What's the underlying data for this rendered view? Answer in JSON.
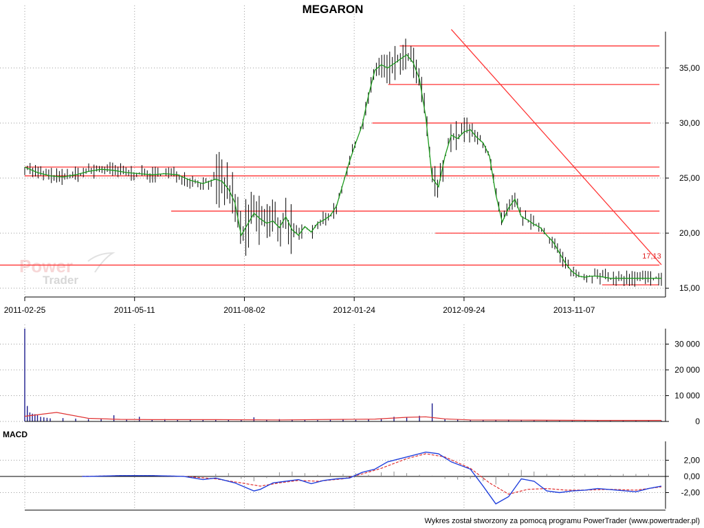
{
  "title": "MEGARON",
  "credit": "Wykres został stworzony za pomocą programu PowerTrader (www.powertrader.pl)",
  "watermark": {
    "line1": "Power",
    "line2": "Trader"
  },
  "colors": {
    "price_bars": "#000000",
    "moving_average": "#1a9a1a",
    "levels": "#ff3333",
    "volume": "#1a1a8c",
    "volume_avg": "#e03030",
    "macd": "#1f3fdc",
    "signal": "#e03030",
    "histogram": "#8a8a8a"
  },
  "chart_data": [
    {
      "type": "line",
      "panel": "price",
      "title": "MEGARON",
      "x_tick_labels": [
        "2011-02-25",
        "2011-05-11",
        "2011-08-02",
        "2012-01-24",
        "2012-09-24",
        "2013-11-07"
      ],
      "y_ticks": [
        15,
        20,
        25,
        30,
        35
      ],
      "y_tick_labels": [
        "15,00",
        "20,00",
        "25,00",
        "30,00",
        "35,00"
      ],
      "ylim": [
        14.2,
        38.8
      ],
      "grid": true,
      "annotation": "17,13",
      "series": [
        {
          "style": "moving-average",
          "x": [
            0,
            0.02,
            0.04,
            0.06,
            0.08,
            0.1,
            0.12,
            0.14,
            0.16,
            0.18,
            0.2,
            0.22,
            0.24,
            0.26,
            0.28,
            0.3,
            0.31,
            0.32,
            0.33,
            0.34,
            0.35,
            0.36,
            0.37,
            0.38,
            0.39,
            0.4,
            0.41,
            0.42,
            0.43,
            0.44,
            0.45,
            0.46,
            0.47,
            0.48,
            0.49,
            0.5,
            0.51,
            0.52,
            0.53,
            0.54,
            0.55,
            0.56,
            0.57,
            0.58,
            0.59,
            0.6,
            0.61,
            0.62,
            0.63,
            0.64,
            0.65,
            0.66,
            0.67,
            0.68,
            0.69,
            0.7,
            0.71,
            0.72,
            0.73,
            0.74,
            0.75,
            0.76,
            0.77,
            0.78,
            0.79,
            0.8,
            0.81,
            0.82,
            0.83,
            0.84,
            0.85,
            0.86,
            0.87,
            0.88,
            0.89,
            0.9,
            0.91,
            0.92,
            0.93,
            0.94,
            0.95,
            0.96,
            0.97,
            0.98,
            0.99,
            1.0
          ],
          "values": [
            26.0,
            25.5,
            25.2,
            25.1,
            25.3,
            25.6,
            25.8,
            25.7,
            25.5,
            25.4,
            25.3,
            25.4,
            25.3,
            24.8,
            24.5,
            24.9,
            24.7,
            24.0,
            22.8,
            19.8,
            20.8,
            21.8,
            21.3,
            20.9,
            21.1,
            20.5,
            21.5,
            20.3,
            19.8,
            20.6,
            20.1,
            20.9,
            21.2,
            21.6,
            22.5,
            24.5,
            26.5,
            28.2,
            29.8,
            32.5,
            34.8,
            35.3,
            35.0,
            35.4,
            35.8,
            36.2,
            35.5,
            34.0,
            30.5,
            25.0,
            24.2,
            27.0,
            28.9,
            28.6,
            29.2,
            29.4,
            28.7,
            28.2,
            27.0,
            23.5,
            21.0,
            22.3,
            23.1,
            21.5,
            21.2,
            20.8,
            20.5,
            19.8,
            19.2,
            18.2,
            17.2,
            16.5,
            16.1,
            16.0,
            16.1,
            16.1,
            16.0,
            15.9,
            15.9,
            15.9,
            15.9,
            15.9,
            15.9,
            15.9,
            15.9,
            15.9
          ]
        },
        {
          "style": "horizontal-levels",
          "values": [
            37.0,
            33.5,
            30.0,
            26.0,
            25.2,
            22.0,
            20.0,
            17.1,
            15.3
          ]
        },
        {
          "style": "trendline",
          "x": [
            0.67,
            1.0
          ],
          "values": [
            38.5,
            17.13
          ]
        }
      ]
    },
    {
      "type": "bar",
      "panel": "volume",
      "y_ticks": [
        0,
        10000,
        20000,
        30000
      ],
      "y_tick_labels": [
        "0",
        "10 000",
        "20 000",
        "30 000"
      ],
      "ylim": [
        0,
        36000
      ],
      "grid": true,
      "series": [
        {
          "style": "volume-bars",
          "x": [
            0,
            0.004,
            0.008,
            0.012,
            0.016,
            0.02,
            0.025,
            0.03,
            0.035,
            0.04,
            0.06,
            0.08,
            0.1,
            0.12,
            0.14,
            0.16,
            0.18,
            0.2,
            0.22,
            0.24,
            0.26,
            0.28,
            0.3,
            0.32,
            0.34,
            0.36,
            0.38,
            0.4,
            0.42,
            0.44,
            0.46,
            0.48,
            0.5,
            0.52,
            0.54,
            0.56,
            0.58,
            0.6,
            0.62,
            0.64,
            0.66,
            0.68,
            0.7,
            0.72,
            0.74,
            0.76,
            0.78,
            0.8,
            0.82,
            0.84,
            0.86,
            0.88,
            0.9,
            0.92,
            0.94,
            0.96,
            0.98,
            1.0
          ],
          "values": [
            36000,
            6000,
            3500,
            3000,
            2800,
            2400,
            1800,
            1600,
            1400,
            1200,
            1300,
            1100,
            900,
            1000,
            2400,
            800,
            1800,
            800,
            900,
            600,
            700,
            800,
            700,
            600,
            800,
            1600,
            700,
            900,
            800,
            600,
            500,
            800,
            700,
            600,
            900,
            1200,
            1800,
            1600,
            2200,
            7000,
            900,
            700,
            600,
            500,
            600,
            700,
            400,
            500,
            400,
            300,
            400,
            300,
            400,
            300,
            400,
            300,
            300,
            300
          ]
        },
        {
          "style": "volume-average",
          "x": [
            0,
            0.05,
            0.1,
            0.15,
            0.2,
            0.3,
            0.4,
            0.5,
            0.55,
            0.6,
            0.63,
            0.66,
            0.7,
            0.8,
            0.9,
            1.0
          ],
          "values": [
            2000,
            3500,
            1200,
            800,
            700,
            700,
            600,
            800,
            900,
            1600,
            1800,
            1000,
            600,
            500,
            400,
            400
          ]
        }
      ]
    },
    {
      "type": "line",
      "panel": "indicator",
      "title": "MACD",
      "y_ticks": [
        -2,
        0,
        2
      ],
      "y_tick_labels": [
        "-2,00",
        "0,00",
        "2,00"
      ],
      "ylim": [
        -4.0,
        4.5
      ],
      "grid": true,
      "series": [
        {
          "style": "macd",
          "x": [
            0.09,
            0.1,
            0.15,
            0.2,
            0.25,
            0.28,
            0.3,
            0.33,
            0.36,
            0.37,
            0.39,
            0.41,
            0.43,
            0.45,
            0.47,
            0.49,
            0.51,
            0.53,
            0.55,
            0.57,
            0.6,
            0.63,
            0.65,
            0.67,
            0.7,
            0.72,
            0.74,
            0.76,
            0.78,
            0.8,
            0.82,
            0.84,
            0.86,
            0.88,
            0.9,
            0.93,
            0.96,
            0.98,
            1.0
          ],
          "values": [
            0.0,
            0.0,
            0.1,
            0.1,
            0.0,
            -0.4,
            -0.2,
            -0.8,
            -1.8,
            -1.6,
            -0.8,
            -0.6,
            -0.4,
            -0.9,
            -0.5,
            -0.3,
            -0.2,
            0.5,
            0.9,
            1.8,
            2.4,
            3.0,
            2.8,
            1.8,
            0.9,
            -1.2,
            -3.4,
            -2.5,
            -0.3,
            -0.6,
            -1.8,
            -2.0,
            -1.8,
            -1.7,
            -1.5,
            -1.7,
            -1.9,
            -1.5,
            -1.2
          ]
        },
        {
          "style": "signal",
          "x": [
            0.09,
            0.15,
            0.2,
            0.25,
            0.3,
            0.34,
            0.37,
            0.4,
            0.43,
            0.46,
            0.5,
            0.53,
            0.56,
            0.6,
            0.63,
            0.66,
            0.7,
            0.73,
            0.76,
            0.79,
            0.82,
            0.85,
            0.88,
            0.92,
            0.96,
            1.0
          ],
          "values": [
            0.0,
            0.1,
            0.1,
            0.0,
            -0.3,
            -0.8,
            -1.2,
            -0.8,
            -0.5,
            -0.6,
            -0.3,
            0.3,
            1.0,
            2.2,
            2.8,
            2.4,
            1.0,
            -0.8,
            -2.2,
            -1.6,
            -1.5,
            -1.7,
            -1.7,
            -1.6,
            -1.7,
            -1.3
          ]
        },
        {
          "style": "histogram",
          "x": [
            0.3,
            0.32,
            0.34,
            0.36,
            0.38,
            0.4,
            0.42,
            0.44,
            0.46,
            0.48,
            0.5,
            0.52,
            0.54,
            0.56,
            0.58,
            0.6,
            0.62,
            0.64,
            0.66,
            0.68,
            0.7,
            0.72,
            0.74,
            0.76,
            0.78,
            0.8,
            0.82,
            0.84,
            0.86,
            0.88,
            0.9,
            0.92,
            0.94,
            0.96,
            0.98
          ],
          "values": [
            0.3,
            0.4,
            -0.3,
            -0.6,
            -0.2,
            0.5,
            0.6,
            0.4,
            0.2,
            0.4,
            0.3,
            0.4,
            0.2,
            0.5,
            0.6,
            0.4,
            0.2,
            0.1,
            -0.3,
            -0.4,
            -0.3,
            -0.6,
            -1.0,
            0.4,
            0.8,
            0.6,
            0.3,
            0.2,
            0.2,
            0.3,
            0.2,
            0.2,
            0.3,
            0.3,
            0.3
          ]
        }
      ]
    }
  ]
}
